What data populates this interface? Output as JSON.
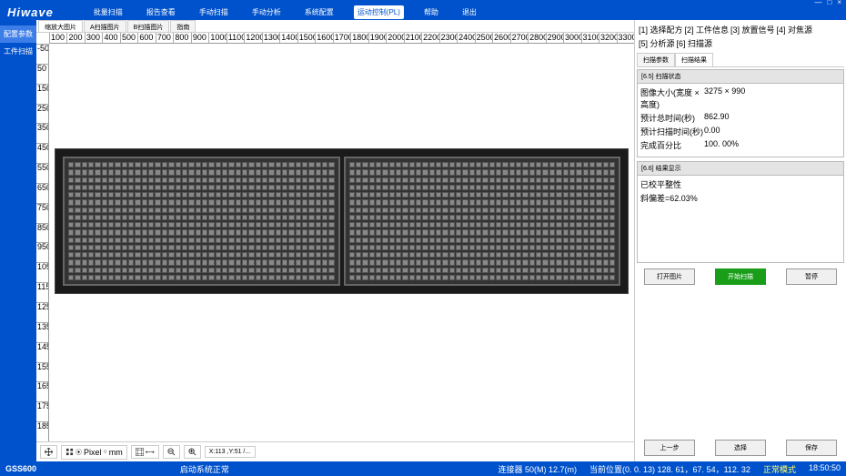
{
  "app": {
    "logo": "Hiwave"
  },
  "winctrl": {
    "min": "—",
    "max": "□",
    "close": "×"
  },
  "topnav": {
    "items": [
      "批量扫描",
      "报告查看",
      "手动扫描",
      "手动分析",
      "系统配置",
      "运动控制(PL)",
      "帮助",
      "退出"
    ],
    "active": 5
  },
  "sidebar": {
    "items": [
      "配置参数",
      "工件扫描"
    ],
    "selected": 0
  },
  "viewtabs": {
    "items": [
      "缩放大图片",
      "A扫描图片",
      "B扫描图片",
      "指南"
    ],
    "active": 0
  },
  "ruler_h": [
    "100",
    "200",
    "300",
    "400",
    "500",
    "600",
    "700",
    "800",
    "900",
    "1000",
    "1100",
    "1200",
    "1300",
    "1400",
    "1500",
    "1600",
    "1700",
    "1800",
    "1900",
    "2000",
    "2100",
    "2200",
    "2300",
    "2400",
    "2500",
    "2600",
    "2700",
    "2800",
    "2900",
    "3000",
    "3100",
    "3200",
    "3300"
  ],
  "ruler_v": [
    "-50",
    "50",
    "150",
    "250",
    "350",
    "450",
    "550",
    "650",
    "750",
    "850",
    "950",
    "1050",
    "1150",
    "1250",
    "1350",
    "1450",
    "1550",
    "1650",
    "1750",
    "1850"
  ],
  "toolbar": {
    "pixel": "Pixel",
    "mm": "mm",
    "coords": "X:113 ,Y:51 /...",
    "zoom_val": ""
  },
  "steps": {
    "items": [
      "[1] 选择配方",
      "[2] 工件信息",
      "[3] 放置信号",
      "[4] 对焦源",
      "[5] 分析源",
      "[6] 扫描源"
    ]
  },
  "rtabs": {
    "items": [
      "扫描参数",
      "扫描结果"
    ],
    "active": 1
  },
  "sec1": {
    "title": "[6.5] 扫描状态",
    "rows": [
      {
        "k": "图像大小(宽度 × 高度)",
        "v": "3275 × 990"
      },
      {
        "k": "预计总时间(秒)",
        "v": "862.90"
      },
      {
        "k": "预计扫描时间(秒)",
        "v": "0.00"
      },
      {
        "k": "完成百分比",
        "v": "100. 00%"
      }
    ]
  },
  "sec2": {
    "title": "[6.6] 结果显示",
    "rows": [
      {
        "k": "已校平整性",
        "v": ""
      },
      {
        "k": "斜偏差=62.03%",
        "v": ""
      }
    ]
  },
  "btns1": {
    "open": "打开图片",
    "start": "开始扫描",
    "pause": "暂停"
  },
  "btns2": {
    "prev": "上一步",
    "select": "选择",
    "save": "保存"
  },
  "status": {
    "product": "GSS600",
    "ver": "",
    "center": "启动系统正常",
    "probe": "连接器 50(M) 12.7(m)",
    "pos": "当前位置(0. 0. 13) 128. 61，67. 54，112. 32",
    "mode": "正常模式",
    "time": "18:50:50"
  },
  "scan": {
    "panel_rows": 16,
    "panel_cols": 40,
    "bg": "#1a1a1a",
    "frame": "#666",
    "cell": "#888"
  }
}
